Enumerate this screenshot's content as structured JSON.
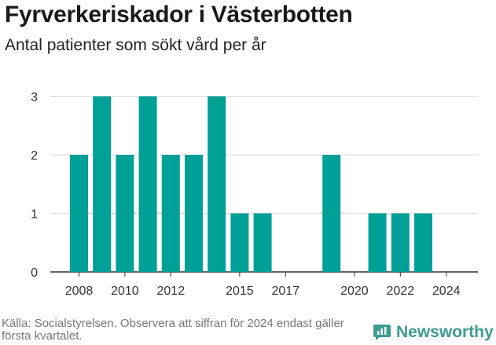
{
  "header": {
    "title": "Fyrverkeriskador i Västerbotten",
    "subtitle": "Antal patienter som sökt vård per år"
  },
  "chart_data": {
    "type": "bar",
    "title": "Fyrverkeriskador i Västerbotten",
    "subtitle": "Antal patienter som sökt vård per år",
    "xlabel": "",
    "ylabel": "",
    "x": [
      2008,
      2009,
      2010,
      2011,
      2012,
      2013,
      2014,
      2015,
      2016,
      2017,
      2018,
      2019,
      2020,
      2021,
      2022,
      2023,
      2024
    ],
    "values": [
      2,
      3,
      2,
      3,
      2,
      2,
      3,
      1,
      1,
      0,
      0,
      2,
      0,
      1,
      1,
      1,
      0
    ],
    "x_ticks": [
      "2008",
      "2010",
      "2012",
      "2015",
      "2017",
      "2020",
      "2022",
      "2024"
    ],
    "y_ticks": [
      "0",
      "1",
      "2",
      "3"
    ],
    "ylim": [
      0,
      3.3
    ],
    "grid": "horizontal",
    "legend": "none",
    "bar_color": "#00a096"
  },
  "footer": {
    "source": "Källa: Socialstyrelsen. Observera att siffran för 2024 endast gäller första kvartalet.",
    "brand": "Newsworthy",
    "brand_color": "#3c9c92",
    "brand_icon": "newsworthy-logo-icon"
  }
}
